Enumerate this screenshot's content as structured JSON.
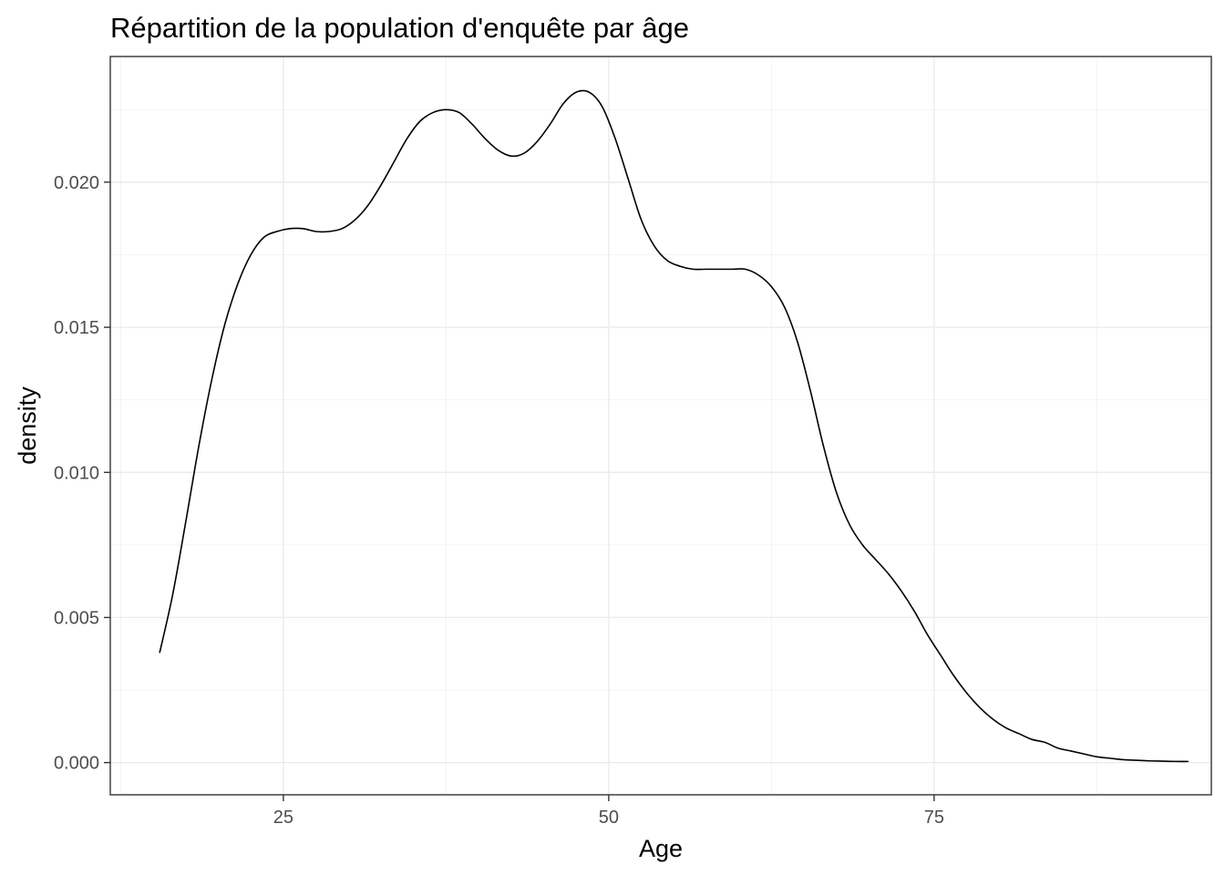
{
  "chart_data": {
    "type": "line",
    "title": "Répartition de la population d'enquête par âge",
    "xlabel": "Age",
    "ylabel": "density",
    "xlim": [
      11.7,
      96.3
    ],
    "ylim": [
      -0.00111,
      0.02433
    ],
    "x_ticks": [
      25,
      50,
      75
    ],
    "x_tick_labels": [
      "25",
      "50",
      "75"
    ],
    "y_ticks": [
      0.0,
      0.005,
      0.01,
      0.015,
      0.02
    ],
    "y_tick_labels": [
      "0.000",
      "0.005",
      "0.010",
      "0.015",
      "0.020"
    ],
    "grid": true,
    "legend": "none",
    "line_color": "#000000",
    "series": [
      {
        "x": [
          15.5,
          16.5,
          17.5,
          18.5,
          19.5,
          20.5,
          21.5,
          22.5,
          23.5,
          24.5,
          25.5,
          26.5,
          27.5,
          28.5,
          29.5,
          30.5,
          31.5,
          32.5,
          33.5,
          34.5,
          35.5,
          36.5,
          37.5,
          38.5,
          39.5,
          40.5,
          41.5,
          42.5,
          43.5,
          44.5,
          45.5,
          46.5,
          47.5,
          48.5,
          49.5,
          50.5,
          51.5,
          52.5,
          53.5,
          54.5,
          55.5,
          56.5,
          57.5,
          58.5,
          59.5,
          60.5,
          61.5,
          62.5,
          63.5,
          64.5,
          65.5,
          66.5,
          67.5,
          68.5,
          69.5,
          70.5,
          71.5,
          72.5,
          73.5,
          74.5,
          75.5,
          76.5,
          77.5,
          78.5,
          79.5,
          80.5,
          81.5,
          82.5,
          83.5,
          84.5,
          85.5,
          86.5,
          87.5,
          88.5,
          89.5,
          90.5,
          91.5,
          92.5,
          93.5,
          94.5
        ],
        "values": [
          0.0038,
          0.0058,
          0.0083,
          0.0109,
          0.0132,
          0.0151,
          0.0165,
          0.0175,
          0.0181,
          0.0183,
          0.0184,
          0.0184,
          0.0183,
          0.0183,
          0.0184,
          0.0187,
          0.0192,
          0.0199,
          0.0207,
          0.0215,
          0.0221,
          0.0224,
          0.0225,
          0.0224,
          0.022,
          0.0215,
          0.0211,
          0.0209,
          0.021,
          0.0214,
          0.022,
          0.0227,
          0.0231,
          0.0231,
          0.0226,
          0.0215,
          0.0201,
          0.0187,
          0.0178,
          0.0173,
          0.0171,
          0.017,
          0.017,
          0.017,
          0.017,
          0.017,
          0.0168,
          0.0164,
          0.0157,
          0.0145,
          0.0128,
          0.0109,
          0.0093,
          0.0082,
          0.0075,
          0.007,
          0.0065,
          0.0059,
          0.0052,
          0.0044,
          0.0037,
          0.003,
          0.0024,
          0.0019,
          0.0015,
          0.0012,
          0.001,
          0.0008,
          0.0007,
          0.0005,
          0.0004,
          0.0003,
          0.0002,
          0.00015,
          0.0001,
          8e-05,
          6e-05,
          5e-05,
          4e-05,
          4e-05
        ]
      }
    ]
  }
}
